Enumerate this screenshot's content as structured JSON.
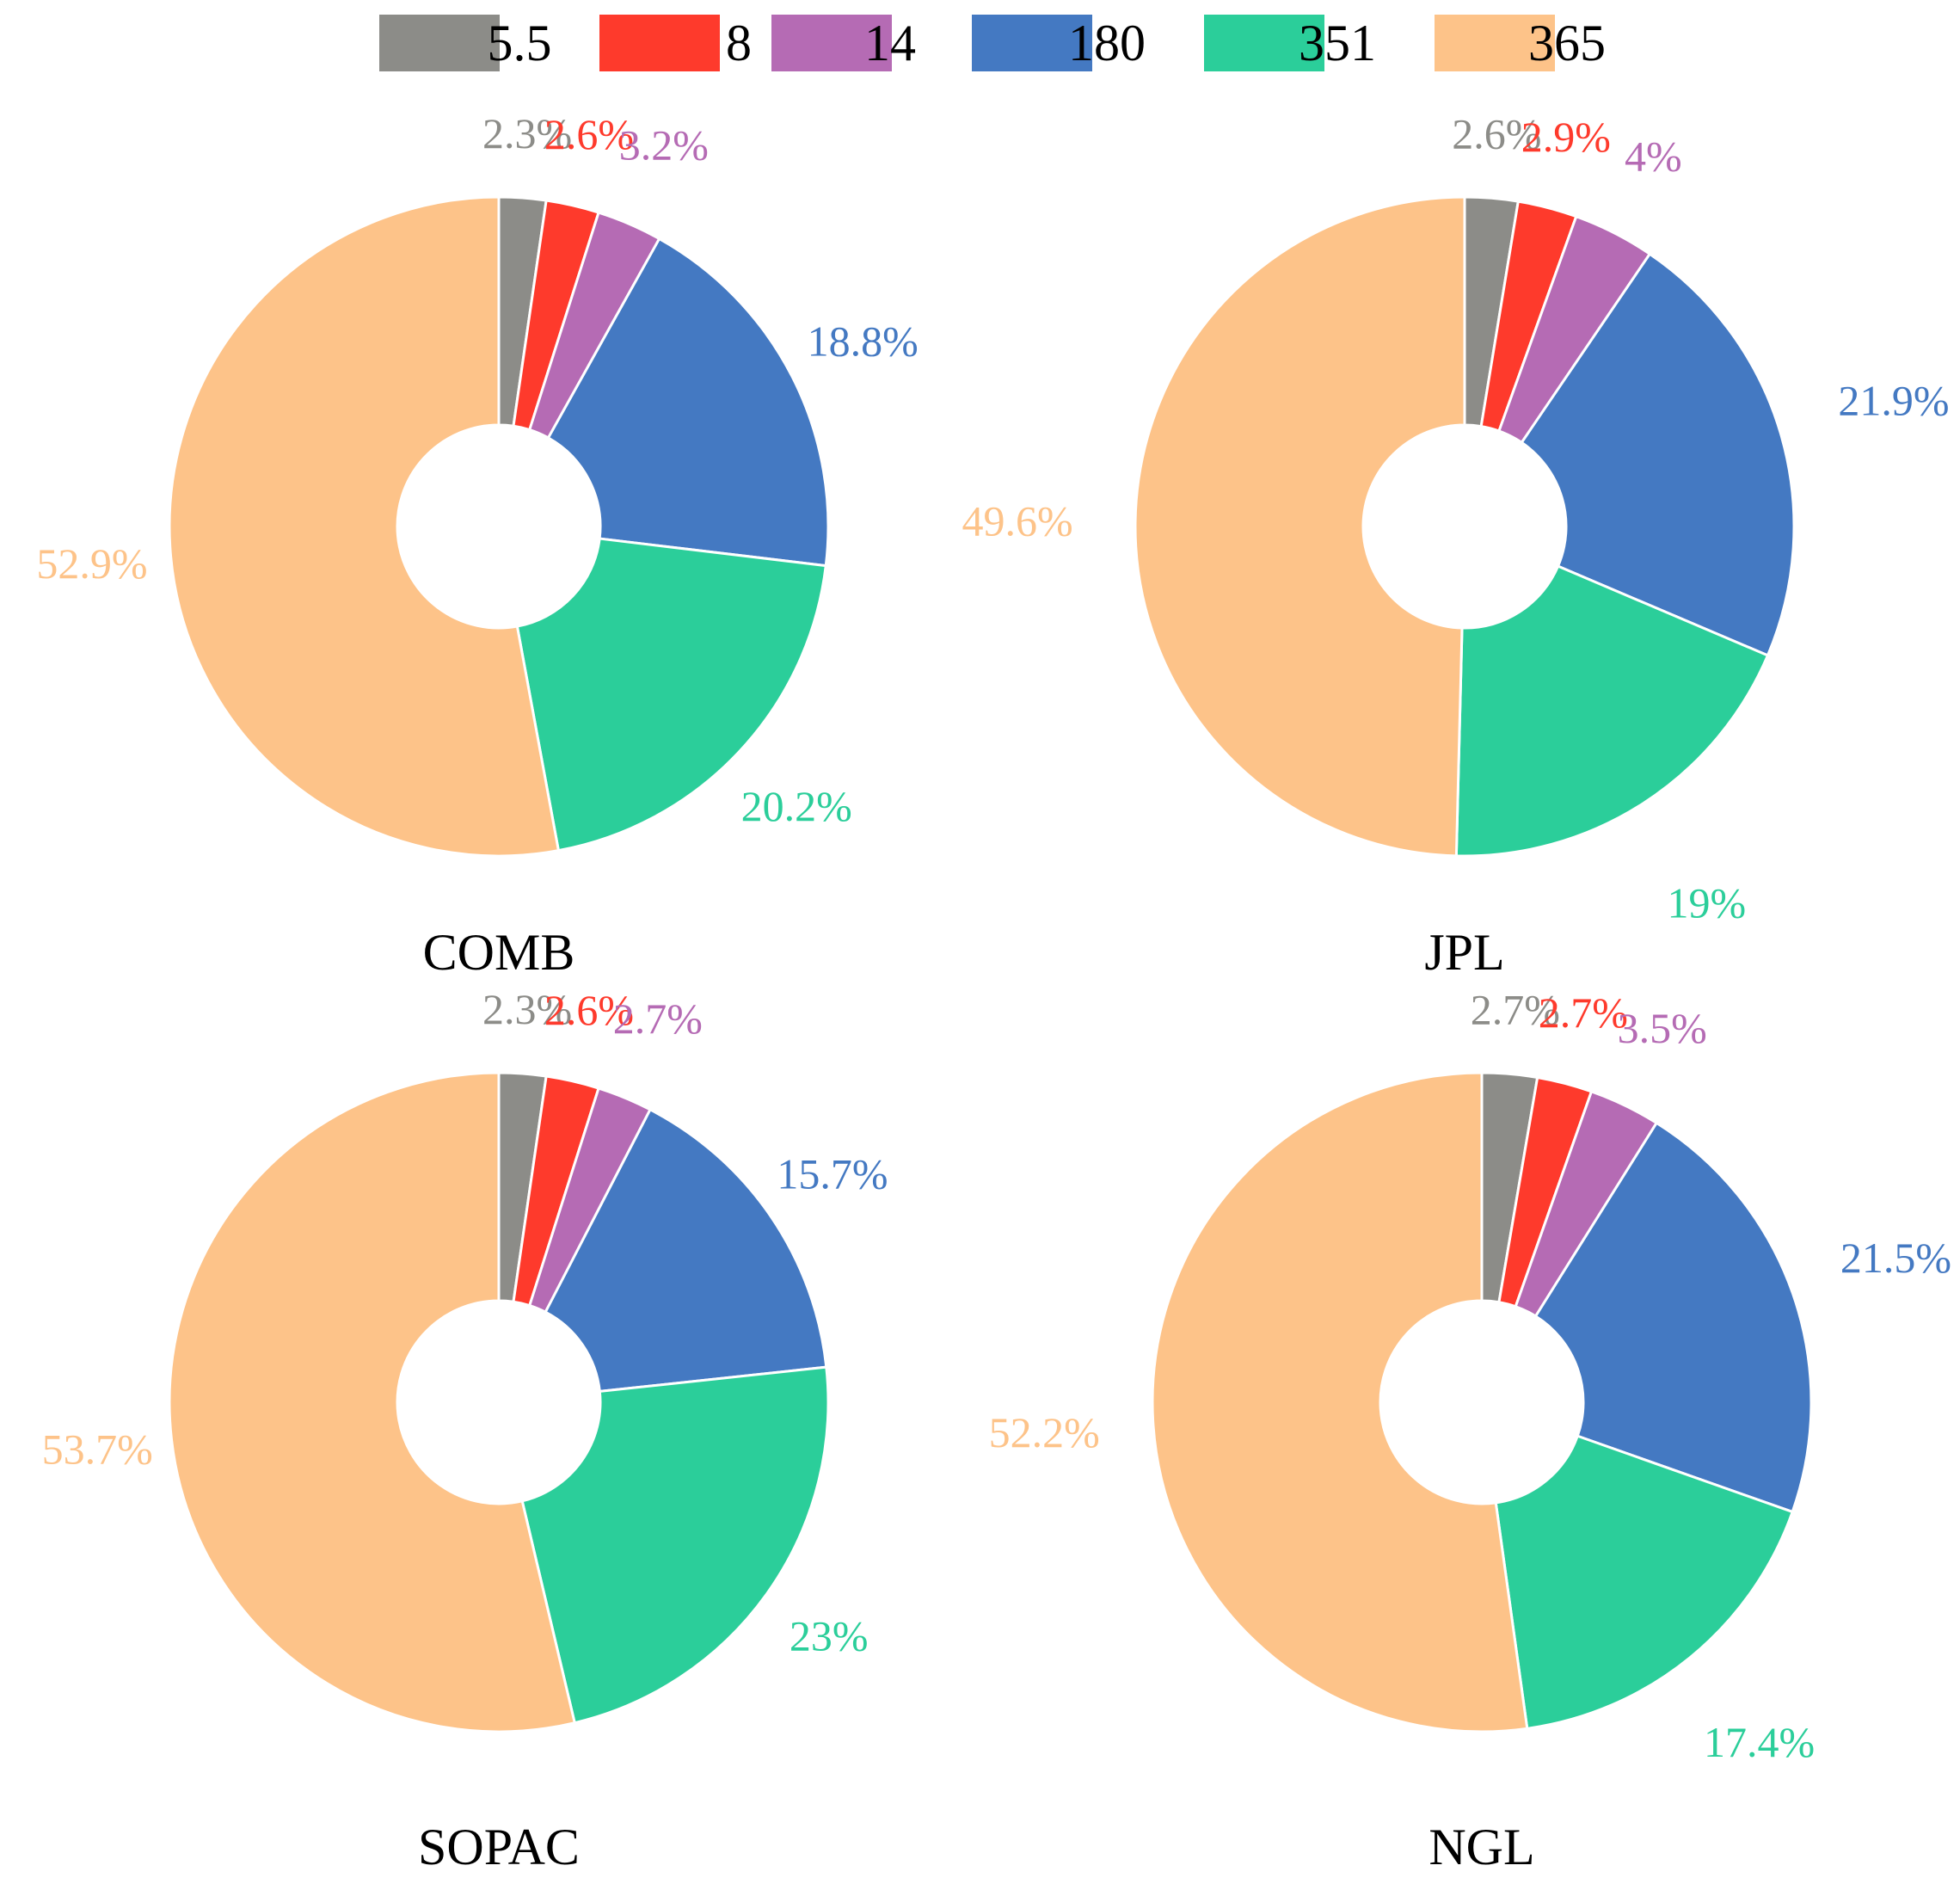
{
  "legend": {
    "entries": [
      {
        "label": "5.5",
        "color": "#8c8c88"
      },
      {
        "label": "8",
        "color": "#fe3a2c"
      },
      {
        "label": "14",
        "color": "#b56bb4"
      },
      {
        "label": "180",
        "color": "#4479c2"
      },
      {
        "label": "351",
        "color": "#2bce9a"
      },
      {
        "label": "365",
        "color": "#fdc389"
      }
    ]
  },
  "chart_data": [
    {
      "type": "pie",
      "title": "COMB",
      "categories": [
        "5.5",
        "8",
        "14",
        "180",
        "351",
        "365"
      ],
      "values": [
        2.3,
        2.6,
        3.2,
        18.8,
        20.2,
        52.9
      ],
      "labels": [
        "2.3%",
        "2.6%",
        "3.2%",
        "18.8%",
        "20.2%",
        "52.9%"
      ]
    },
    {
      "type": "pie",
      "title": "JPL",
      "categories": [
        "5.5",
        "8",
        "14",
        "180",
        "351",
        "365"
      ],
      "values": [
        2.6,
        2.9,
        4,
        21.9,
        19,
        49.6
      ],
      "labels": [
        "2.6%",
        "2.9%",
        "4%",
        "21.9%",
        "19%",
        "49.6%"
      ]
    },
    {
      "type": "pie",
      "title": "SOPAC",
      "categories": [
        "5.5",
        "8",
        "14",
        "180",
        "351",
        "365"
      ],
      "values": [
        2.3,
        2.6,
        2.7,
        15.7,
        23,
        53.7
      ],
      "labels": [
        "2.3%",
        "2.6%",
        "2.7%",
        "15.7%",
        "23%",
        "53.7%"
      ]
    },
    {
      "type": "pie",
      "title": "NGL",
      "categories": [
        "5.5",
        "8",
        "14",
        "180",
        "351",
        "365"
      ],
      "values": [
        2.7,
        2.7,
        3.5,
        21.5,
        17.4,
        52.2
      ],
      "labels": [
        "2.7%",
        "2.7%",
        "3.5%",
        "21.5%",
        "17.4%",
        "52.2%"
      ]
    }
  ]
}
